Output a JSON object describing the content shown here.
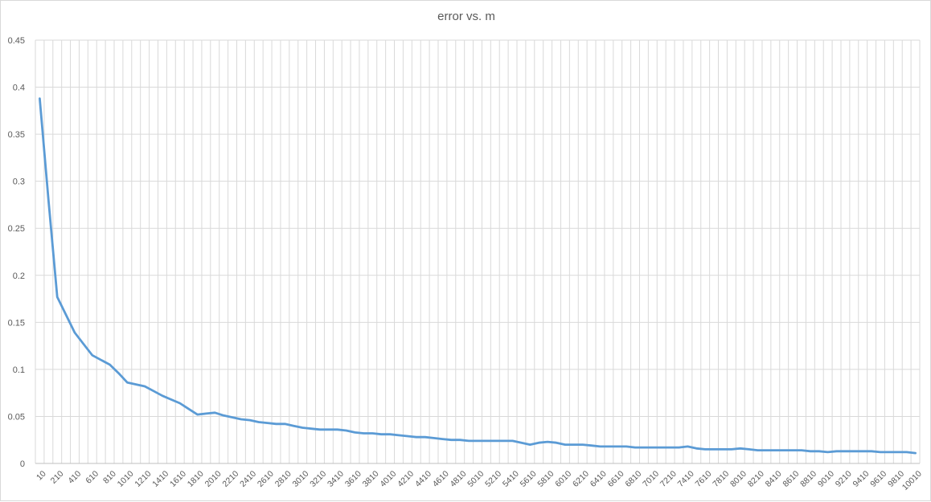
{
  "chart_data": {
    "type": "line",
    "title": "error vs. m",
    "xlabel": "",
    "ylabel": "",
    "ylim": [
      0,
      0.45
    ],
    "yticks": [
      "0",
      "0.05",
      "0.1",
      "0.15",
      "0.2",
      "0.25",
      "0.3",
      "0.35",
      "0.4",
      "0.45"
    ],
    "grid": true,
    "legend": "none",
    "line_color": "#5b9bd5",
    "grid_color": "#d9d9d9",
    "x": [
      10,
      110,
      210,
      310,
      410,
      510,
      610,
      710,
      810,
      910,
      1010,
      1110,
      1210,
      1310,
      1410,
      1510,
      1610,
      1710,
      1810,
      1910,
      2010,
      2110,
      2210,
      2310,
      2410,
      2510,
      2610,
      2710,
      2810,
      2910,
      3010,
      3110,
      3210,
      3310,
      3410,
      3510,
      3610,
      3710,
      3810,
      3910,
      4010,
      4110,
      4210,
      4310,
      4410,
      4510,
      4610,
      4710,
      4810,
      4910,
      5010,
      5110,
      5210,
      5310,
      5410,
      5510,
      5610,
      5710,
      5810,
      5910,
      6010,
      6110,
      6210,
      6310,
      6410,
      6510,
      6610,
      6710,
      6810,
      6910,
      7010,
      7110,
      7210,
      7310,
      7410,
      7510,
      7610,
      7710,
      7810,
      7910,
      8010,
      8110,
      8210,
      8310,
      8410,
      8510,
      8610,
      8710,
      8810,
      8910,
      9010,
      9110,
      9210,
      9310,
      9410,
      9510,
      9610,
      9710,
      9810,
      9910,
      10010
    ],
    "xtick_labels": [
      "10",
      "210",
      "410",
      "610",
      "810",
      "1010",
      "1210",
      "1410",
      "1610",
      "1810",
      "2010",
      "2210",
      "2410",
      "2610",
      "2810",
      "3010",
      "3210",
      "3410",
      "3610",
      "3810",
      "4010",
      "4210",
      "4410",
      "4610",
      "4810",
      "5010",
      "5210",
      "5410",
      "5610",
      "5810",
      "6010",
      "6210",
      "6410",
      "6610",
      "6810",
      "7010",
      "7210",
      "7410",
      "7610",
      "7810",
      "8010",
      "8210",
      "8410",
      "8610",
      "8810",
      "9010",
      "9210",
      "9410",
      "9610",
      "9810",
      "10010"
    ],
    "series": [
      {
        "name": "",
        "values": [
          0.388,
          0.28,
          0.177,
          0.158,
          0.139,
          0.127,
          0.115,
          0.11,
          0.105,
          0.096,
          0.086,
          0.084,
          0.082,
          0.077,
          0.072,
          0.068,
          0.064,
          0.058,
          0.052,
          0.053,
          0.054,
          0.051,
          0.049,
          0.047,
          0.046,
          0.044,
          0.043,
          0.042,
          0.042,
          0.04,
          0.038,
          0.037,
          0.036,
          0.036,
          0.036,
          0.035,
          0.033,
          0.032,
          0.032,
          0.031,
          0.031,
          0.03,
          0.029,
          0.028,
          0.028,
          0.027,
          0.026,
          0.025,
          0.025,
          0.024,
          0.024,
          0.024,
          0.024,
          0.024,
          0.024,
          0.022,
          0.02,
          0.022,
          0.023,
          0.022,
          0.02,
          0.02,
          0.02,
          0.019,
          0.018,
          0.018,
          0.018,
          0.018,
          0.017,
          0.017,
          0.017,
          0.017,
          0.017,
          0.017,
          0.018,
          0.016,
          0.015,
          0.015,
          0.015,
          0.015,
          0.016,
          0.015,
          0.014,
          0.014,
          0.014,
          0.014,
          0.014,
          0.014,
          0.013,
          0.013,
          0.012,
          0.013,
          0.013,
          0.013,
          0.013,
          0.013,
          0.012,
          0.012,
          0.012,
          0.012,
          0.011
        ]
      }
    ]
  }
}
